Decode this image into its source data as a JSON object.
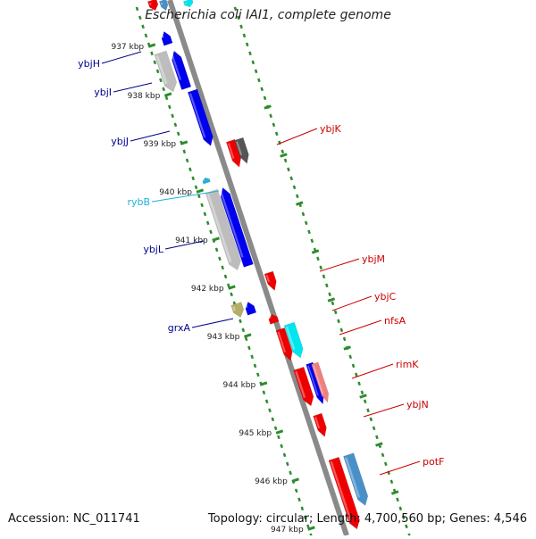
{
  "title": "Escherichia coli IAI1, complete genome",
  "footer": {
    "accession": "Accession: NC_011741",
    "summary": "Topology: circular; Length: 4,700,560 bp; Genes: 4,546"
  },
  "colors": {
    "backbone": "#8a8a8a",
    "tick": "#2e8b2e",
    "blue": "#0000ee",
    "red": "#ee0000",
    "gray": "#bdbdbd",
    "darkgray": "#555555",
    "cyan": "#00e5ee",
    "skyblue": "#4a90c8",
    "olive": "#b5ae68",
    "pink": "#f08080",
    "label_blue": "#00008b",
    "label_red": "#cc0000",
    "label_cyan": "#20b2d8"
  },
  "ticks": [
    "937 kbp",
    "938 kbp",
    "939 kbp",
    "940 kbp",
    "941 kbp",
    "942 kbp",
    "943 kbp",
    "944 kbp",
    "945 kbp",
    "946 kbp",
    "947 kbp"
  ],
  "left_labels": [
    "ybjH",
    "ybjI",
    "ybjJ",
    "rybB",
    "ybjL",
    "grxA"
  ],
  "right_labels": [
    "ybjK",
    "ybjM",
    "ybjC",
    "nfsA",
    "rimK",
    "ybjN",
    "potF"
  ]
}
